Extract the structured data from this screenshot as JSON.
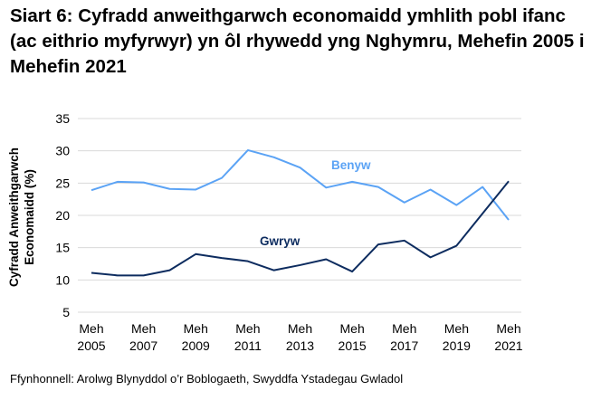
{
  "chart_data": {
    "type": "line",
    "title": "Siart 6: Cyfradd anweithgarwch economaidd ymhlith pobl ifanc (ac eithrio myfyrwyr) yn ôl rhywedd yng Nghymru, Mehefin 2005 i Mehefin 2021",
    "xlabel": "",
    "ylabel": "Cyfradd Anweithgarwch Economaidd (%)",
    "ylabel_lines": [
      "Cyfradd Anweithgarwch",
      "Economaidd (%)"
    ],
    "ylim": [
      5,
      35
    ],
    "yticks": [
      5,
      10,
      15,
      20,
      25,
      30,
      35
    ],
    "x": [
      2005,
      2006,
      2007,
      2008,
      2009,
      2010,
      2011,
      2012,
      2013,
      2014,
      2015,
      2016,
      2017,
      2018,
      2019,
      2020,
      2021
    ],
    "xtick_labels": [
      [
        "Meh",
        "2005"
      ],
      [
        "Meh",
        "2007"
      ],
      [
        "Meh",
        "2009"
      ],
      [
        "Meh",
        "2011"
      ],
      [
        "Meh",
        "2013"
      ],
      [
        "Meh",
        "2015"
      ],
      [
        "Meh",
        "2017"
      ],
      [
        "Meh",
        "2019"
      ],
      [
        "Meh",
        "2021"
      ]
    ],
    "grid": true,
    "series": [
      {
        "name": "Benyw",
        "color": "#5BA3F5",
        "values": [
          23.9,
          25.2,
          25.1,
          24.1,
          24.0,
          25.8,
          30.1,
          29.0,
          27.4,
          24.3,
          25.2,
          24.4,
          22.0,
          24.0,
          21.6,
          24.4,
          19.3
        ]
      },
      {
        "name": "Gwryw",
        "color": "#0D2C5F",
        "values": [
          11.1,
          10.7,
          10.7,
          11.5,
          14.0,
          13.4,
          12.9,
          11.5,
          12.3,
          13.2,
          11.3,
          15.5,
          16.1,
          13.5,
          15.3,
          20.3,
          25.3
        ]
      }
    ]
  },
  "source": "Ffynhonnell: Arolwg Blynyddol o’r Boblogaeth, Swyddfa Ystadegau Gwladol"
}
